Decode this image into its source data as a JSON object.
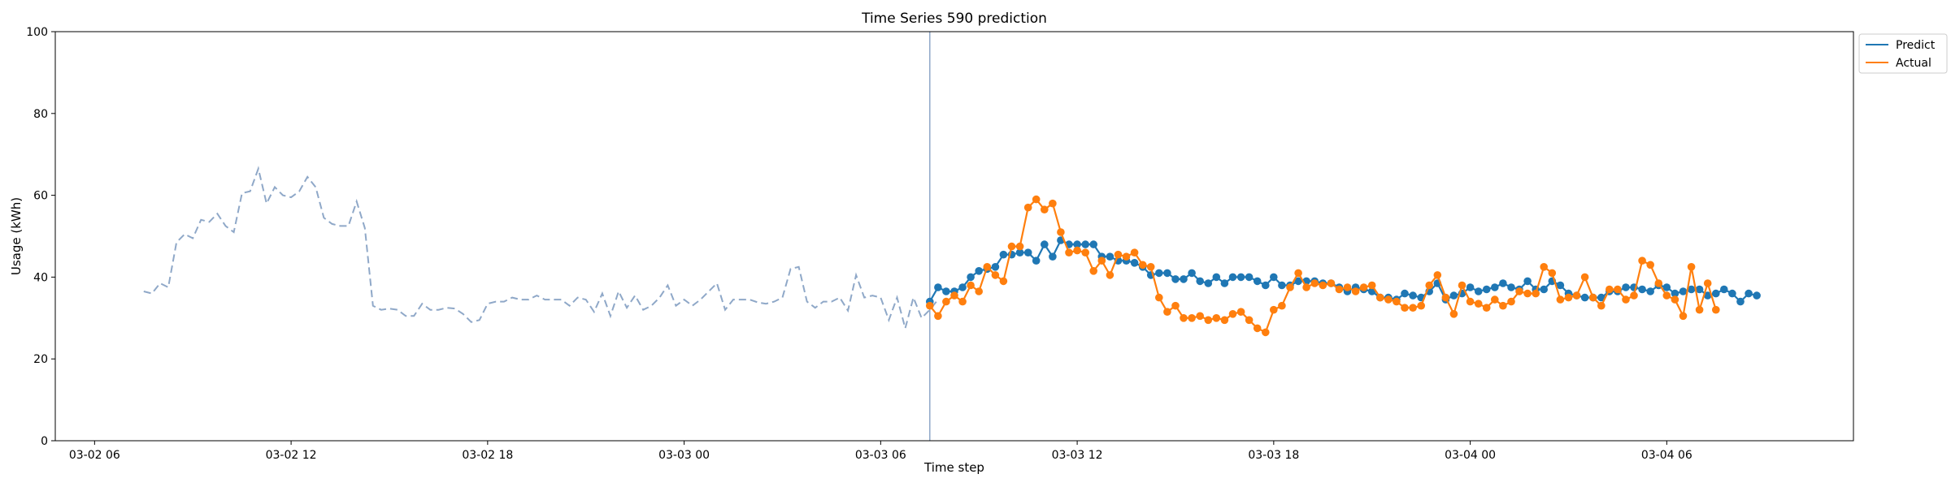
{
  "chart_data": {
    "type": "line",
    "title": "Time Series 590 prediction",
    "xlabel": "Time step",
    "ylabel": "Usage (kWh)",
    "ylim": [
      0,
      100
    ],
    "yticks": [
      0,
      20,
      40,
      60,
      80,
      100
    ],
    "xlim": [
      "2026-03-02 04:48",
      "2026-03-04 11:42"
    ],
    "xticks": [
      {
        "t": "2026-03-02 06:00",
        "label": "03-02 06"
      },
      {
        "t": "2026-03-02 12:00",
        "label": "03-02 12"
      },
      {
        "t": "2026-03-02 18:00",
        "label": "03-02 18"
      },
      {
        "t": "2026-03-03 00:00",
        "label": "03-03 00"
      },
      {
        "t": "2026-03-03 06:00",
        "label": "03-03 06"
      },
      {
        "t": "2026-03-03 12:00",
        "label": "03-03 12"
      },
      {
        "t": "2026-03-03 18:00",
        "label": "03-03 18"
      },
      {
        "t": "2026-03-04 00:00",
        "label": "03-04 00"
      },
      {
        "t": "2026-03-04 06:00",
        "label": "03-04 06"
      }
    ],
    "grid": false,
    "legend_position": "outside top-right",
    "split_time": "2026-03-03 07:30",
    "history": {
      "start": "2026-03-02 07:30",
      "interval_minutes": 15,
      "color": "#8fa8c8",
      "style": "dashed",
      "values": [
        36.5,
        36,
        38.5,
        37.5,
        48.5,
        50.5,
        49.5,
        54,
        53.5,
        55.5,
        52.5,
        51,
        60.5,
        61,
        66.5,
        58,
        62,
        60,
        59.5,
        61,
        64.5,
        62,
        54.5,
        53,
        52.5,
        52.5,
        58.5,
        52,
        33,
        32,
        32.3,
        32,
        30.5,
        30.5,
        33.5,
        32,
        32,
        32.5,
        32.3,
        31,
        29,
        29.5,
        33.5,
        34,
        34,
        35,
        34.5,
        34.5,
        35.5,
        34.5,
        34.5,
        34.5,
        33,
        35,
        34.5,
        31.5,
        36,
        30.5,
        36.5,
        32.5,
        35.5,
        32,
        33,
        35,
        38,
        33,
        34.5,
        33,
        34.5,
        36.5,
        38.5,
        32,
        34.5,
        34.5,
        34.5,
        33.8,
        33.5,
        34,
        35,
        42,
        42.5,
        34,
        32.5,
        34,
        34,
        35,
        31.8,
        40.5,
        35,
        35.5,
        35,
        29.5,
        35,
        27.5,
        35,
        30,
        32,
        34.5
      ]
    },
    "series": [
      {
        "name": "Predict",
        "color": "#1f77b4",
        "start": "2026-03-03 07:30",
        "interval_minutes": 15,
        "values": [
          34,
          37.5,
          36.5,
          36.5,
          37.5,
          40,
          41.5,
          42,
          42.5,
          45.5,
          45.5,
          46,
          46,
          44,
          48,
          45,
          49,
          48,
          48,
          48,
          48,
          45,
          45,
          44,
          44,
          43.5,
          42.5,
          40.5,
          41,
          41,
          39.5,
          39.5,
          41,
          39,
          38.5,
          40,
          38.5,
          40,
          40,
          40,
          39,
          38,
          40,
          38,
          38,
          39,
          39,
          39,
          38.5,
          38.5,
          37.5,
          36.5,
          37.5,
          37,
          36.5,
          35,
          35,
          34.5,
          36,
          35.5,
          35,
          36.5,
          38.5,
          34.5,
          35.5,
          36,
          37.5,
          36.5,
          37,
          37.5,
          38.5,
          37.5,
          37,
          39,
          37,
          37,
          39,
          38,
          36,
          35.5,
          35,
          35,
          35,
          36.5,
          36.5,
          37.5,
          37.5,
          37,
          36.5,
          38,
          37.5,
          36,
          36.5,
          37,
          37,
          35.5,
          36,
          37,
          36,
          34,
          36,
          35.5
        ]
      },
      {
        "name": "Actual",
        "color": "#ff7f0e",
        "start": "2026-03-03 07:30",
        "interval_minutes": 15,
        "values": [
          33,
          30.5,
          34,
          35.5,
          34,
          38,
          36.5,
          42.5,
          40.5,
          39,
          47.5,
          47.5,
          57,
          59,
          56.5,
          58,
          51,
          46,
          46.5,
          46,
          41.5,
          44,
          40.5,
          45.5,
          45,
          46,
          43,
          42.5,
          35,
          31.5,
          33,
          30,
          30,
          30.5,
          29.5,
          30,
          29.5,
          31,
          31.5,
          29.5,
          27.5,
          26.5,
          32,
          33,
          37.5,
          41,
          37.5,
          38.5,
          38,
          38.5,
          37,
          37.5,
          36.5,
          37.5,
          38,
          35,
          34.5,
          34,
          32.5,
          32.5,
          33,
          38,
          40.5,
          35,
          31,
          38,
          34,
          33.5,
          32.5,
          34.5,
          33,
          34,
          36.5,
          36,
          36,
          42.5,
          41,
          34.5,
          35,
          35.5,
          40,
          35,
          33,
          37,
          37,
          34.5,
          35.5,
          44,
          43,
          38.5,
          35.5,
          34.5,
          30.5,
          42.5,
          32,
          38.5,
          32,
          null,
          null,
          null,
          null
        ]
      }
    ]
  }
}
